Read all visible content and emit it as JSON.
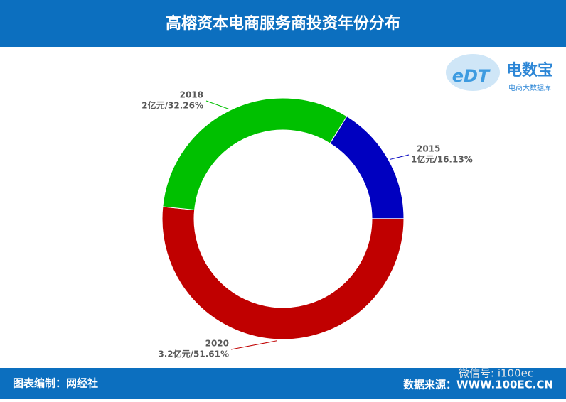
{
  "chart_data": {
    "type": "donut",
    "title": "高榕资本电商服务商投资年份分布",
    "categories": [
      "2015",
      "2020",
      "2018"
    ],
    "values": [
      16.13,
      51.61,
      32.26
    ],
    "value_labels": [
      "1亿元/16.13%",
      "3.2亿元/51.61%",
      "2亿元/32.26%"
    ],
    "colors": [
      "#0000c0",
      "#c00000",
      "#00c000"
    ]
  },
  "logo": {
    "mark": "eDT",
    "name": "电数宝",
    "tagline": "电商大数据库"
  },
  "footer": {
    "left": "图表编制：网经社",
    "watermark": "微信号: i100ec",
    "right": "数据来源：WWW.100EC.CN"
  }
}
